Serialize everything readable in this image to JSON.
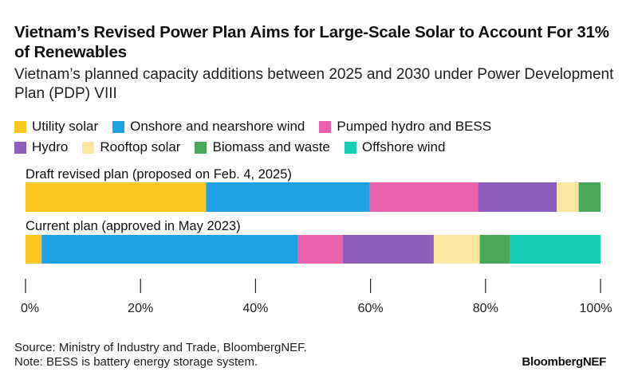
{
  "title": "Vietnam’s Revised Power Plan Aims for Large-Scale Solar to Account For 31% of Renewables",
  "subtitle": "Vietnam’s planned capacity additions between 2025 and 2030 under Power Development Plan (PDP) VIII",
  "legend_rows": [
    [
      {
        "label": "Utility solar",
        "color": "#fcc721"
      },
      {
        "label": "Onshore and nearshore wind",
        "color": "#1fa1e5"
      },
      {
        "label": "Pumped hydro and BESS",
        "color": "#ea62ab"
      }
    ],
    [
      {
        "label": "Hydro",
        "color": "#8f5dbd"
      },
      {
        "label": "Rooftop solar",
        "color": "#fde7a0"
      },
      {
        "label": "Biomass and waste",
        "color": "#49a85a"
      },
      {
        "label": "Offshore wind",
        "color": "#16cdb5"
      }
    ]
  ],
  "chart_data": {
    "type": "bar",
    "orientation": "horizontal",
    "stacked": true,
    "normalized": true,
    "categories": [
      "Draft revised plan (proposed on Feb. 4, 2025)",
      "Current plan (approved in May 2023)"
    ],
    "series": [
      {
        "name": "Utility solar",
        "color": "#fcc721",
        "values": [
          31.4,
          2.8
        ]
      },
      {
        "name": "Onshore and nearshore wind",
        "color": "#1fa1e5",
        "values": [
          28.5,
          44.5
        ]
      },
      {
        "name": "Pumped hydro and BESS",
        "color": "#ea62ab",
        "values": [
          18.8,
          7.9
        ]
      },
      {
        "name": "Hydro",
        "color": "#8f5dbd",
        "values": [
          13.7,
          15.8
        ]
      },
      {
        "name": "Rooftop solar",
        "color": "#fde7a0",
        "values": [
          3.8,
          8.0
        ]
      },
      {
        "name": "Biomass and waste",
        "color": "#49a85a",
        "values": [
          3.8,
          5.3
        ]
      },
      {
        "name": "Offshore wind",
        "color": "#16cdb5",
        "values": [
          0,
          15.7
        ]
      }
    ],
    "xlim": [
      0,
      100
    ],
    "ticks": [
      "0%",
      "20%",
      "40%",
      "60%",
      "80%",
      "100%"
    ],
    "tick_values": [
      0,
      20,
      40,
      60,
      80,
      100
    ],
    "legend": "top"
  },
  "footer": {
    "source": "Source: Ministry of Industry and Trade, BloombergNEF.",
    "note": "Note: BESS is battery energy storage system."
  },
  "brand": "BloombergNEF"
}
